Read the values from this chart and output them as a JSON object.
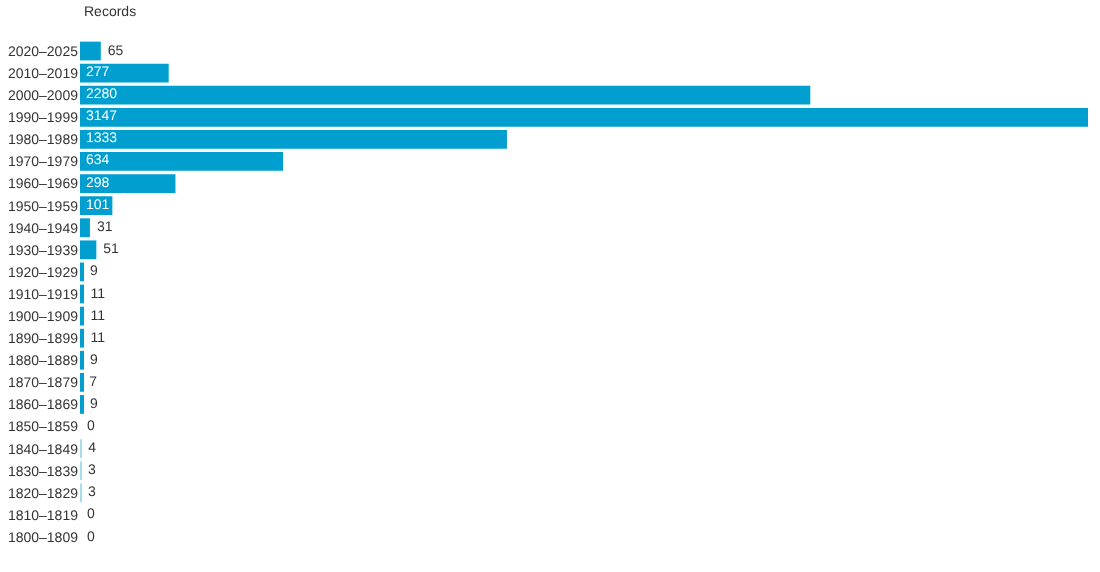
{
  "chart_data": {
    "type": "bar",
    "orientation": "horizontal",
    "xlabel": "Records",
    "data_labels": true,
    "categories": [
      "2020–2025",
      "2010–2019",
      "2000–2009",
      "1990–1999",
      "1980–1989",
      "1970–1979",
      "1960–1969",
      "1950–1959",
      "1940–1949",
      "1930–1939",
      "1920–1929",
      "1910–1919",
      "1900–1909",
      "1890–1899",
      "1880–1889",
      "1870–1879",
      "1860–1869",
      "1850–1859",
      "1840–1849",
      "1830–1839",
      "1820–1829",
      "1810–1819",
      "1800–1809"
    ],
    "values": [
      65,
      277,
      2280,
      3147,
      1333,
      634,
      298,
      101,
      31,
      51,
      9,
      11,
      11,
      11,
      9,
      7,
      9,
      0,
      4,
      3,
      3,
      0,
      0
    ],
    "colors": [
      "#009fd0",
      "#009fd0",
      "#009fd0",
      "#009fd0",
      "#009fd0",
      "#009fd0",
      "#009fd0",
      "#009fd0",
      "#009fd0",
      "#009fd0",
      "#009fd0",
      "#009fd0",
      "#009fd0",
      "#009fd0",
      "#009fd0",
      "#009fd0",
      "#009fd0",
      "#009fd0",
      "#a8dcef",
      "#a8dcef",
      "#a8dcef",
      "#009fd0",
      "#009fd0"
    ]
  }
}
